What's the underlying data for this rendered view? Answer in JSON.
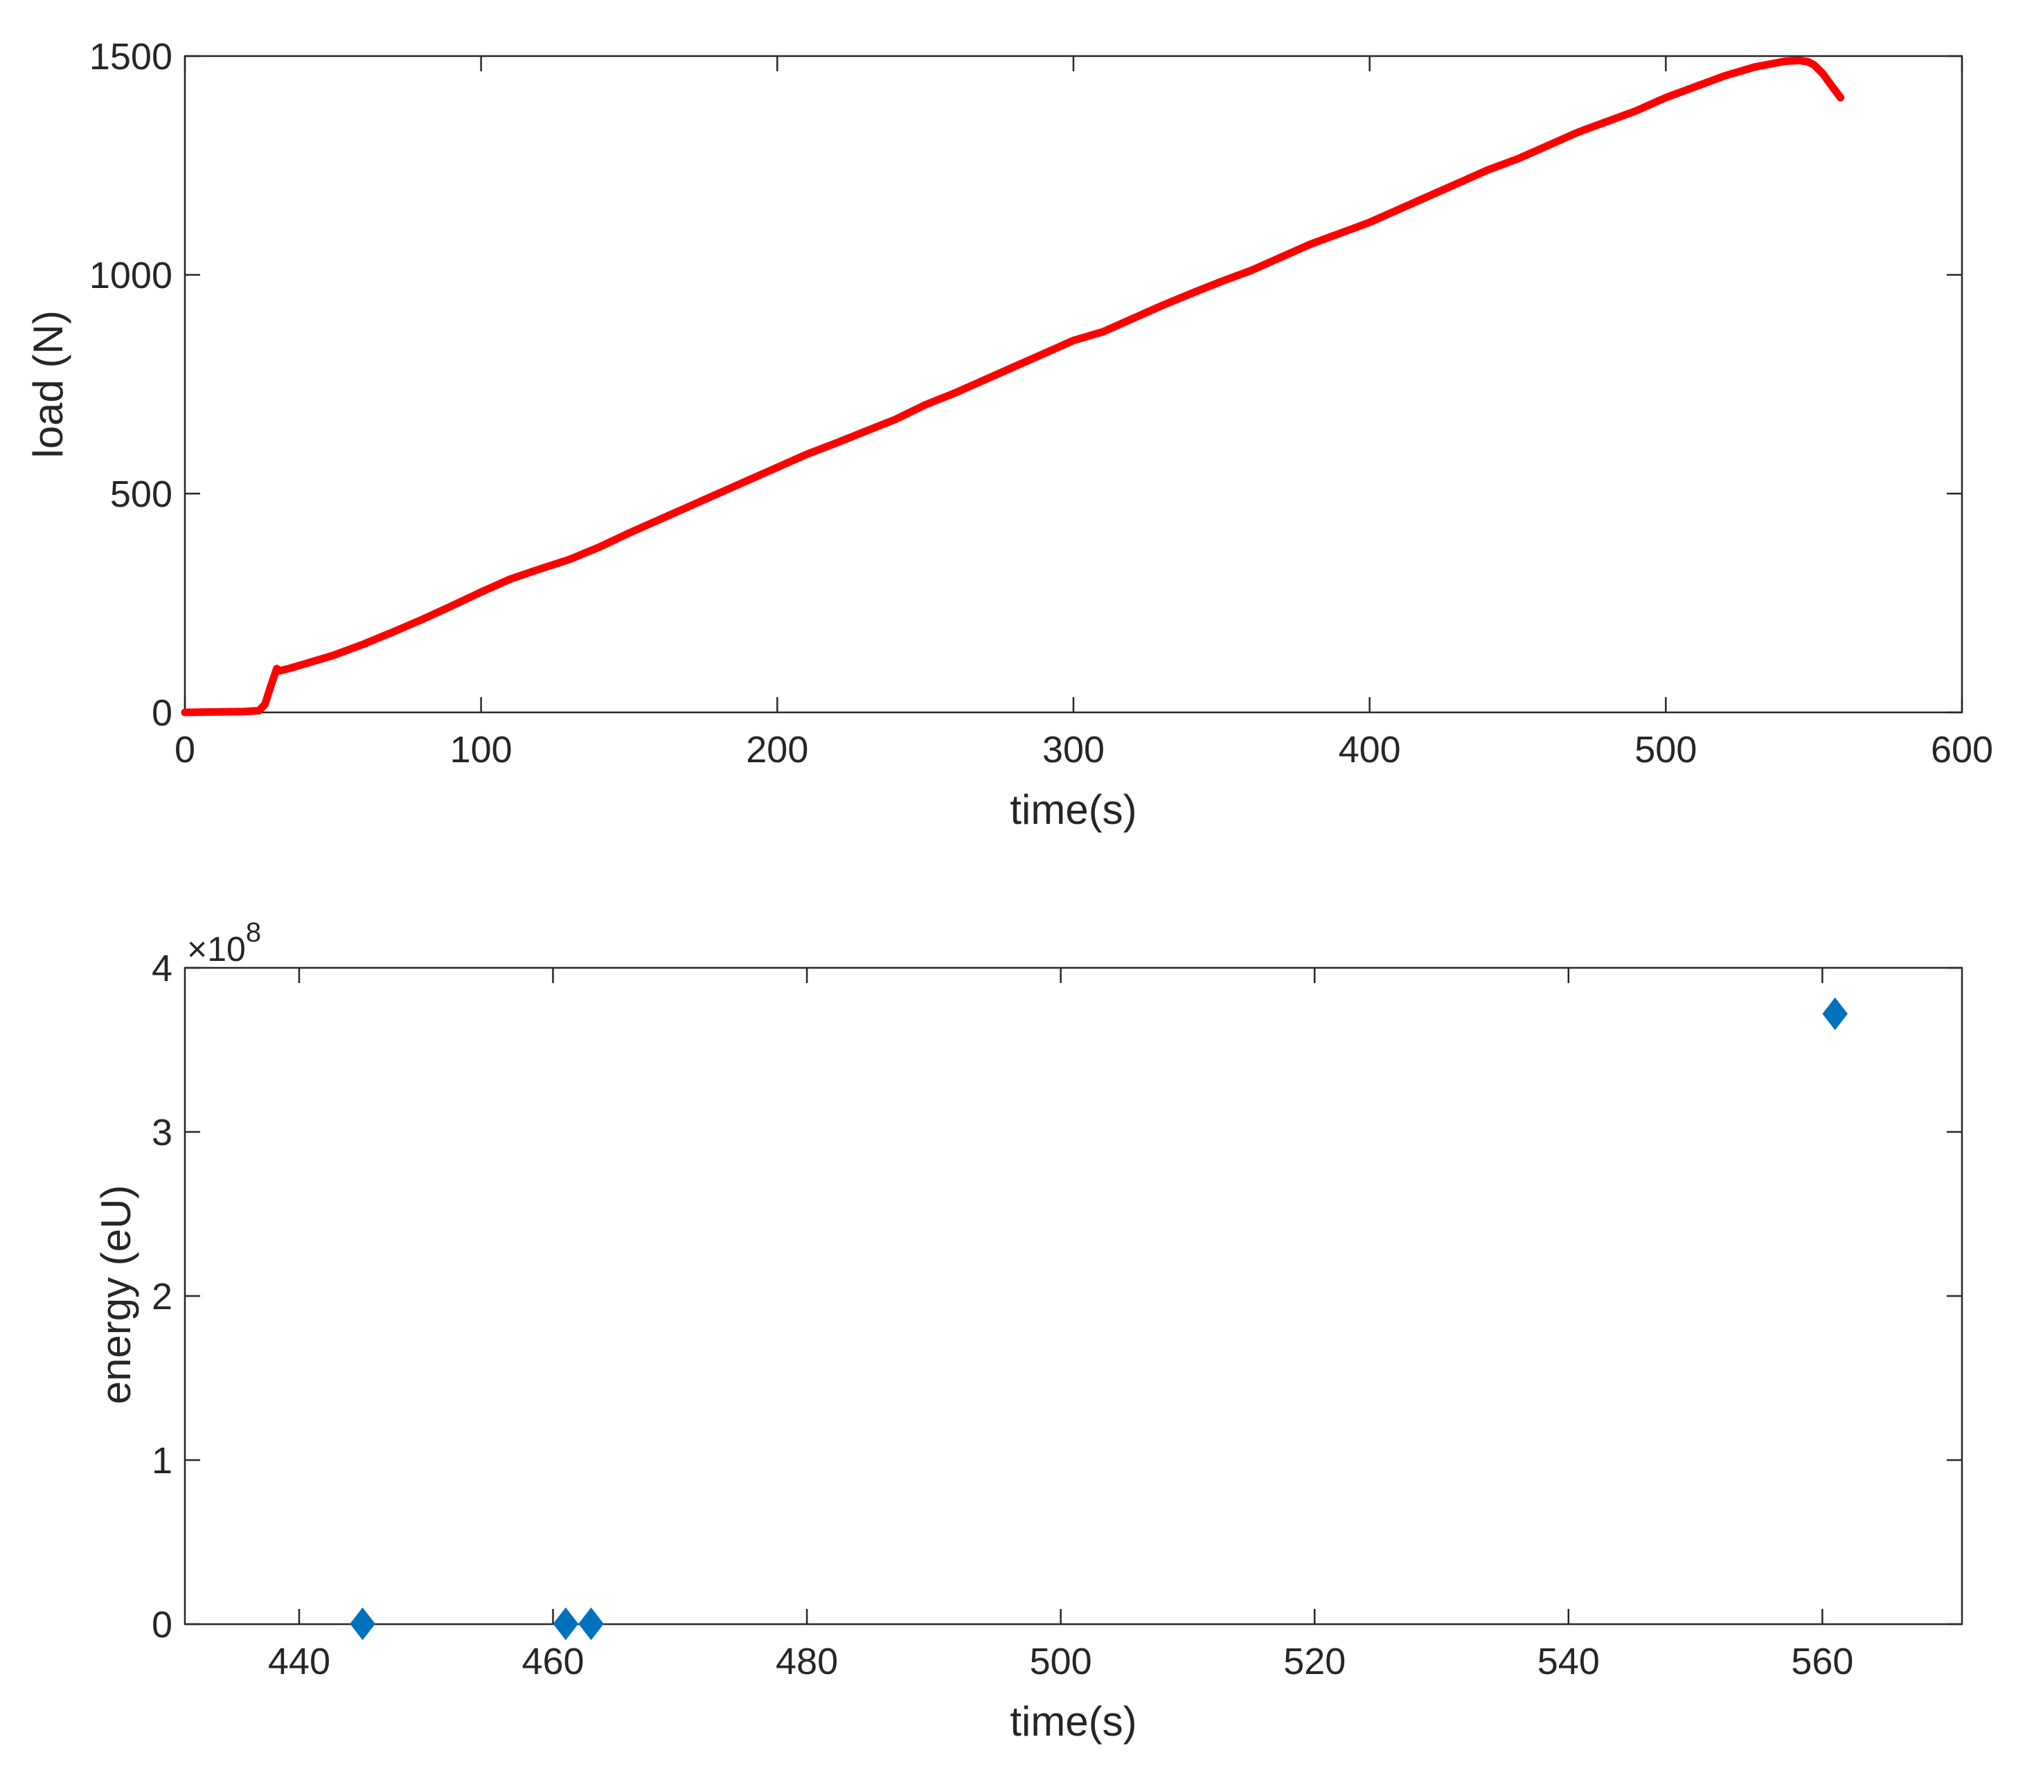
{
  "chart_data": [
    {
      "type": "line",
      "xlabel": "time(s)",
      "ylabel": "load (N)",
      "xlim": [
        0,
        600
      ],
      "ylim": [
        0,
        1500
      ],
      "xticks": [
        "0",
        "100",
        "200",
        "300",
        "400",
        "500",
        "600"
      ],
      "yticks": [
        "0",
        "500",
        "1000",
        "1500"
      ],
      "grid": false,
      "series": [
        {
          "color": "#ff0000",
          "x": [
            0,
            10,
            20,
            25,
            27,
            29,
            31,
            32,
            35,
            40,
            50,
            60,
            70,
            80,
            90,
            100,
            110,
            120,
            130,
            140,
            150,
            160,
            170,
            180,
            190,
            200,
            210,
            220,
            230,
            240,
            250,
            260,
            270,
            280,
            290,
            300,
            310,
            320,
            330,
            340,
            350,
            360,
            370,
            380,
            390,
            400,
            410,
            420,
            430,
            440,
            450,
            460,
            470,
            480,
            490,
            500,
            510,
            520,
            530,
            540,
            545,
            548,
            550,
            553,
            556,
            559
          ],
          "y": [
            0,
            1,
            2,
            4,
            18,
            60,
            100,
            95,
            100,
            110,
            130,
            155,
            183,
            212,
            243,
            275,
            305,
            328,
            350,
            378,
            410,
            440,
            470,
            500,
            530,
            560,
            590,
            616,
            643,
            670,
            703,
            730,
            760,
            790,
            820,
            850,
            870,
            900,
            930,
            958,
            985,
            1010,
            1040,
            1070,
            1095,
            1120,
            1150,
            1180,
            1210,
            1240,
            1265,
            1295,
            1325,
            1350,
            1375,
            1405,
            1430,
            1455,
            1475,
            1488,
            1490,
            1487,
            1480,
            1460,
            1432,
            1405
          ]
        }
      ]
    },
    {
      "type": "scatter",
      "xlabel": "time(s)",
      "ylabel": "energy (eU)",
      "xlim": [
        431,
        571
      ],
      "ylim": [
        0,
        4
      ],
      "y_multiplier": "×10",
      "y_exponent": "8",
      "xticks": [
        "440",
        "460",
        "480",
        "500",
        "520",
        "540",
        "560"
      ],
      "yticks": [
        "0",
        "1",
        "2",
        "3",
        "4"
      ],
      "grid": false,
      "series": [
        {
          "color": "#0072bd",
          "marker": "diamond",
          "x": [
            445,
            461,
            463,
            561
          ],
          "y": [
            0.002,
            0.002,
            0.002,
            3.72
          ]
        }
      ]
    }
  ]
}
